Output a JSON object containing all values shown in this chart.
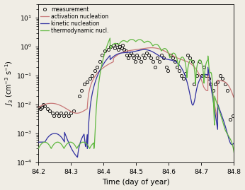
{
  "xlim": [
    84.2,
    84.8
  ],
  "ylim": [
    0.0001,
    30
  ],
  "xlabel": "Time (day of year)",
  "xticks": [
    84.2,
    84.3,
    84.4,
    84.5,
    84.6,
    84.7,
    84.8
  ],
  "legend_order": [
    "measurement",
    "activation nucleation",
    "kinetic nucleation",
    "thermodynamic nucl."
  ],
  "colors": {
    "activation": "#c87878",
    "kinetic": "#3030a0",
    "thermodynamic": "#60b840"
  },
  "background": "#f0ede5"
}
